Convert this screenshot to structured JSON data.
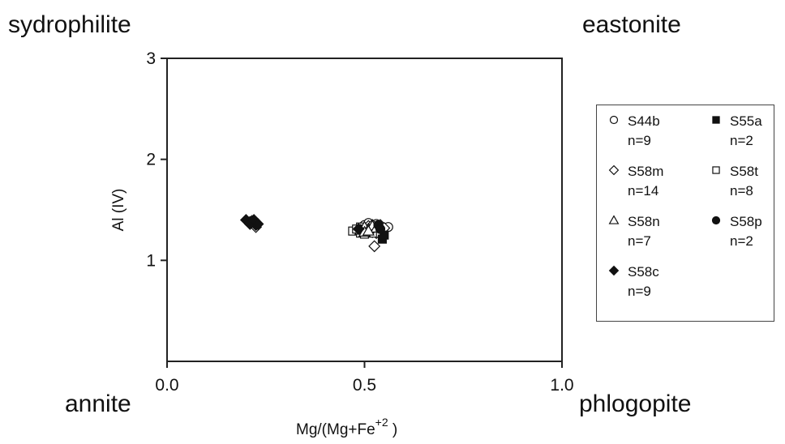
{
  "corner_labels": {
    "top_left": "sydrophilite",
    "top_right": "eastonite",
    "bottom_left": "annite",
    "bottom_right": "phlogopite"
  },
  "chart_data": {
    "type": "scatter",
    "xlabel": "Mg/(Mg+Fe",
    "xlabel_superscript": "+2",
    "xlabel_suffix": " )",
    "ylabel": "Al (IV)",
    "xlim": [
      0.0,
      1.0
    ],
    "ylim": [
      0,
      3
    ],
    "x_ticks": [
      0.0,
      0.5,
      1.0
    ],
    "x_tick_labels": [
      "0.0",
      "0.5",
      "1.0"
    ],
    "y_ticks": [
      1,
      2,
      3
    ],
    "y_tick_labels": [
      "1",
      "2",
      "3"
    ],
    "grid": false,
    "legend_position": "right",
    "series": [
      {
        "name": "S44b",
        "n_label": "n=9",
        "marker": "circle-open",
        "points": [
          [
            0.5,
            1.35
          ],
          [
            0.51,
            1.37
          ],
          [
            0.52,
            1.33
          ],
          [
            0.53,
            1.36
          ],
          [
            0.54,
            1.34
          ],
          [
            0.55,
            1.32
          ],
          [
            0.51,
            1.3
          ],
          [
            0.53,
            1.31
          ],
          [
            0.56,
            1.33
          ]
        ]
      },
      {
        "name": "S55a",
        "n_label": "n=2",
        "marker": "square-filled",
        "points": [
          [
            0.545,
            1.21
          ],
          [
            0.55,
            1.25
          ]
        ]
      },
      {
        "name": "S58m",
        "n_label": "n=14",
        "marker": "diamond-open",
        "points": [
          [
            0.49,
            1.32
          ],
          [
            0.5,
            1.3
          ],
          [
            0.51,
            1.34
          ],
          [
            0.52,
            1.28
          ],
          [
            0.525,
            1.14
          ],
          [
            0.53,
            1.3
          ],
          [
            0.54,
            1.35
          ],
          [
            0.55,
            1.32
          ],
          [
            0.5,
            1.28
          ],
          [
            0.52,
            1.35
          ],
          [
            0.51,
            1.31
          ],
          [
            0.22,
            1.36
          ],
          [
            0.225,
            1.33
          ],
          [
            0.53,
            1.27
          ]
        ]
      },
      {
        "name": "S58t",
        "n_label": "n=8",
        "marker": "square-open",
        "points": [
          [
            0.47,
            1.29
          ],
          [
            0.48,
            1.31
          ],
          [
            0.49,
            1.27
          ],
          [
            0.5,
            1.26
          ],
          [
            0.49,
            1.33
          ],
          [
            0.51,
            1.29
          ],
          [
            0.52,
            1.27
          ],
          [
            0.5,
            1.31
          ]
        ]
      },
      {
        "name": "S58n",
        "n_label": "n=7",
        "marker": "triangle-open",
        "points": [
          [
            0.49,
            1.3
          ],
          [
            0.5,
            1.33
          ],
          [
            0.51,
            1.31
          ],
          [
            0.52,
            1.34
          ],
          [
            0.5,
            1.28
          ],
          [
            0.53,
            1.32
          ],
          [
            0.51,
            1.29
          ]
        ]
      },
      {
        "name": "S58p",
        "n_label": "n=2",
        "marker": "circle-filled",
        "points": [
          [
            0.535,
            1.35
          ],
          [
            0.54,
            1.31
          ]
        ]
      },
      {
        "name": "S58c",
        "n_label": "n=9",
        "marker": "diamond-filled",
        "points": [
          [
            0.2,
            1.4
          ],
          [
            0.21,
            1.38
          ],
          [
            0.215,
            1.39
          ],
          [
            0.22,
            1.37
          ],
          [
            0.225,
            1.35
          ],
          [
            0.21,
            1.36
          ],
          [
            0.22,
            1.4
          ],
          [
            0.23,
            1.36
          ],
          [
            0.485,
            1.31
          ]
        ]
      }
    ]
  }
}
